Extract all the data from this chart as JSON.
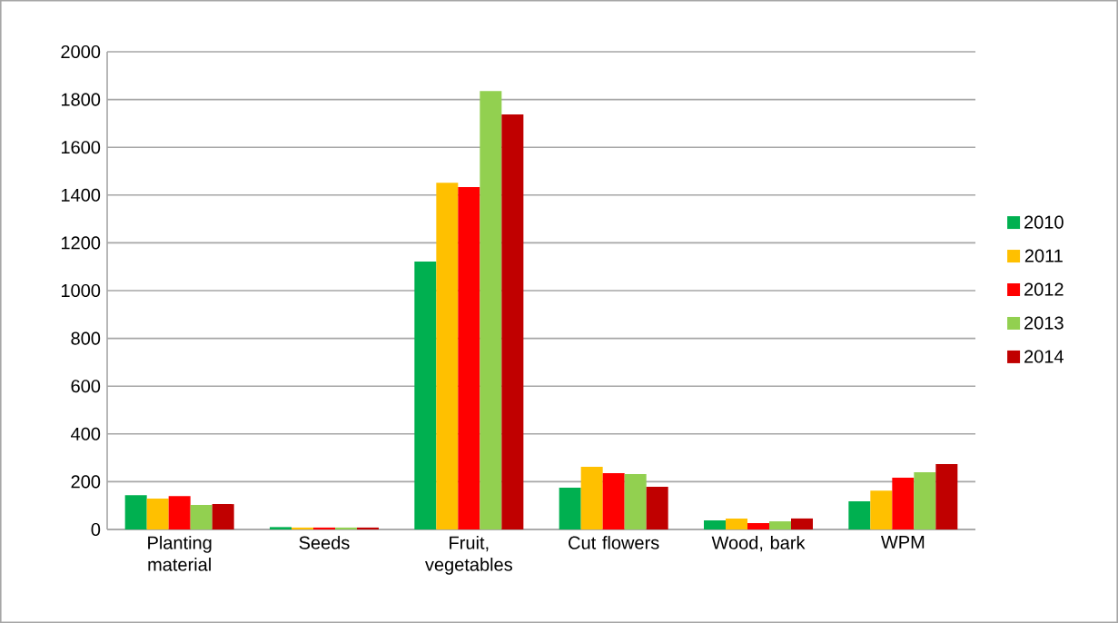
{
  "chart_data": {
    "type": "bar",
    "categories": [
      "Planting material",
      "Seeds",
      "Fruit, vegetables",
      "Cut flowers",
      "Wood, bark",
      "WPM"
    ],
    "series": [
      {
        "name": "2010",
        "color": "#00b050",
        "values": [
          144,
          10,
          1122,
          175,
          38,
          118
        ]
      },
      {
        "name": "2011",
        "color": "#ffc000",
        "values": [
          129,
          8,
          1452,
          262,
          46,
          163
        ]
      },
      {
        "name": "2012",
        "color": "#ff0000",
        "values": [
          140,
          8,
          1433,
          236,
          27,
          217
        ]
      },
      {
        "name": "2013",
        "color": "#92d050",
        "values": [
          103,
          8,
          1836,
          232,
          34,
          240
        ]
      },
      {
        "name": "2014",
        "color": "#c00000",
        "values": [
          106,
          8,
          1738,
          179,
          46,
          274
        ]
      }
    ],
    "ylim": [
      0,
      2000
    ],
    "yticks": [
      0,
      200,
      400,
      600,
      800,
      1000,
      1200,
      1400,
      1600,
      1800,
      2000
    ],
    "grid": "y",
    "legend": "right"
  }
}
